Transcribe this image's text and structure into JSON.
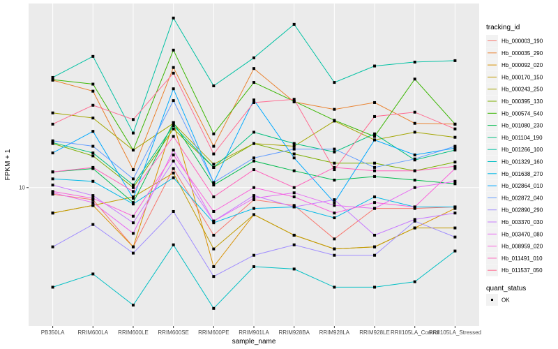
{
  "chart_data": {
    "type": "line",
    "title": "",
    "xlabel": "sample_name",
    "ylabel": "FPKM + 1",
    "y_scale": "log10",
    "ylim": [
      3.4,
      42
    ],
    "y_ticks": [
      10
    ],
    "y_tick_labels": [
      "10"
    ],
    "grid": true,
    "categories": [
      "PB350LA",
      "RRIM600LA",
      "RRIM600LE",
      "RRIM600SE",
      "RRIM600PE",
      "RRIM901LA",
      "RRIM928BA",
      "RRIM928LA",
      "RRIM928LE",
      "RRII105LA_Control",
      "RRII105LA_Stressed"
    ],
    "legend": {
      "placement": "right",
      "color_title": "tracking_id",
      "shape_title": "quant_status",
      "shape_entries": [
        "OK"
      ]
    },
    "series": [
      {
        "name": "Hb_000003_190",
        "color": "#F8766D",
        "values": [
          9.5,
          9.1,
          6.3,
          11.6,
          6.9,
          9.1,
          8.7,
          6.7,
          8.5,
          8.5,
          8.6
        ]
      },
      {
        "name": "Hb_000035_290",
        "color": "#EA8331",
        "values": [
          23.1,
          21.2,
          11.5,
          25.5,
          13.8,
          25.3,
          19.5,
          18.4,
          19.4,
          16.5,
          16.4
        ]
      },
      {
        "name": "Hb_000092_020",
        "color": "#D89000",
        "values": [
          8.2,
          8.7,
          6.3,
          16.6,
          5.4,
          8.1,
          6.9,
          6.2,
          6.3,
          7.3,
          8.5
        ]
      },
      {
        "name": "Hb_000170_150",
        "color": "#C09B00",
        "values": [
          8.2,
          8.7,
          9.3,
          11.2,
          6.2,
          8.1,
          6.9,
          6.2,
          6.3,
          7.3,
          7.3
        ]
      },
      {
        "name": "Hb_000243_250",
        "color": "#A3A500",
        "values": [
          17.9,
          17.2,
          13.4,
          16.5,
          12.0,
          14.1,
          13.8,
          16.8,
          14.5,
          15.4,
          14.8
        ]
      },
      {
        "name": "Hb_000395_130",
        "color": "#7CAE00",
        "values": [
          14.1,
          12.8,
          10.0,
          15.8,
          11.7,
          14.1,
          13.0,
          12.1,
          12.1,
          11.4,
          12.2
        ]
      },
      {
        "name": "Hb_000574_540",
        "color": "#39B600",
        "values": [
          23.2,
          22.4,
          13.4,
          29.2,
          15.2,
          22.7,
          19.6,
          16.9,
          14.9,
          23.3,
          16.4
        ]
      },
      {
        "name": "Hb_001080_230",
        "color": "#00BB4E",
        "values": [
          11.3,
          11.6,
          8.9,
          16.6,
          10.2,
          12.3,
          11.4,
          10.6,
          10.9,
          10.6,
          10.3
        ]
      },
      {
        "name": "Hb_001104_190",
        "color": "#00BF7D",
        "values": [
          14.2,
          13.1,
          10.2,
          16.2,
          11.7,
          15.4,
          14.1,
          13.2,
          15.2,
          12.4,
          13.4
        ]
      },
      {
        "name": "Hb_001266_100",
        "color": "#00C1A3",
        "values": [
          23.6,
          27.8,
          15.3,
          37.5,
          22.1,
          27.5,
          35.7,
          22.7,
          25.8,
          26.6,
          26.9
        ]
      },
      {
        "name": "Hb_001329_160",
        "color": "#00BFC4",
        "values": [
          4.6,
          5.1,
          4.0,
          6.4,
          3.9,
          5.4,
          5.3,
          4.6,
          4.6,
          4.8,
          6.1
        ]
      },
      {
        "name": "Hb_001638_270",
        "color": "#00B8E7",
        "values": [
          10.7,
          10.5,
          8.8,
          10.8,
          7.6,
          8.5,
          8.6,
          7.9,
          9.3,
          8.6,
          8.6
        ]
      },
      {
        "name": "Hb_002864_010",
        "color": "#00A9FF",
        "values": [
          13.1,
          15.5,
          9.2,
          21.6,
          10.4,
          19.8,
          12.6,
          8.9,
          14.5,
          12.9,
          13.6
        ]
      },
      {
        "name": "Hb_002872_040",
        "color": "#619CFF",
        "values": [
          14.4,
          13.8,
          10.7,
          19.7,
          10.4,
          12.6,
          13.5,
          13.5,
          11.7,
          12.5,
          13.8
        ]
      },
      {
        "name": "Hb_002890_290",
        "color": "#9F8CFF",
        "values": [
          6.3,
          7.5,
          6.0,
          8.3,
          5.0,
          5.9,
          6.4,
          5.9,
          5.9,
          7.7,
          6.8
        ]
      },
      {
        "name": "Hb_003370_030",
        "color": "#C77CFF",
        "values": [
          10.2,
          9.4,
          7.6,
          12.3,
          7.7,
          9.4,
          8.6,
          9.1,
          6.9,
          7.8,
          8.2
        ]
      },
      {
        "name": "Hb_003470_080",
        "color": "#E76BF3",
        "values": [
          9.6,
          8.9,
          7.0,
          13.4,
          7.7,
          9.2,
          9.6,
          8.7,
          8.5,
          10.0,
          10.5
        ]
      },
      {
        "name": "Hb_008959_020",
        "color": "#FA62DB",
        "values": [
          9.7,
          9.2,
          8.0,
          12.9,
          8.3,
          10.0,
          9.3,
          8.2,
          8.9,
          8.6,
          11.6
        ]
      },
      {
        "name": "Hb_011491_010",
        "color": "#FF62BC",
        "values": [
          11.3,
          11.7,
          9.7,
          14.9,
          9.3,
          11.5,
          10.0,
          11.7,
          11.4,
          11.4,
          11.8
        ]
      },
      {
        "name": "Hb_011537_050",
        "color": "#FF6C91",
        "values": [
          16.4,
          19.0,
          17.0,
          24.4,
          13.0,
          19.4,
          19.9,
          11.5,
          17.4,
          18.0,
          15.8
        ]
      }
    ]
  }
}
